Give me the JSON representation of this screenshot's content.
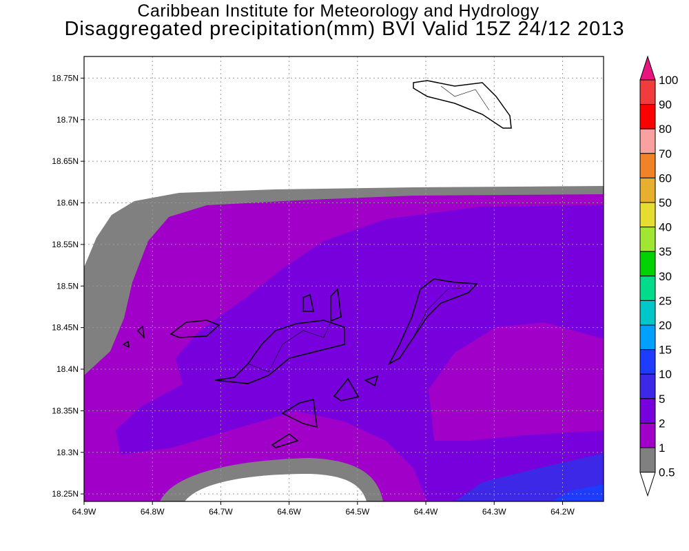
{
  "title": {
    "line1": "Caribbean Institute for Meteorology and Hydrology",
    "line2": "Disaggregated precipitation(mm) BVI Valid 15Z 24/12 2013"
  },
  "map": {
    "lon_range": [
      -64.9,
      -64.14
    ],
    "lat_range": [
      18.241,
      18.776
    ],
    "x_ticks": [
      {
        "value": -64.9,
        "label": "64.9W"
      },
      {
        "value": -64.8,
        "label": "64.8W"
      },
      {
        "value": -64.7,
        "label": "64.7W"
      },
      {
        "value": -64.6,
        "label": "64.6W"
      },
      {
        "value": -64.5,
        "label": "64.5W"
      },
      {
        "value": -64.4,
        "label": "64.4W"
      },
      {
        "value": -64.3,
        "label": "64.3W"
      },
      {
        "value": -64.2,
        "label": "64.2W"
      }
    ],
    "y_ticks": [
      {
        "value": 18.75,
        "label": "18.75N"
      },
      {
        "value": 18.7,
        "label": "18.7N"
      },
      {
        "value": 18.65,
        "label": "18.65N"
      },
      {
        "value": 18.6,
        "label": "18.6N"
      },
      {
        "value": 18.55,
        "label": "18.55N"
      },
      {
        "value": 18.5,
        "label": "18.5N"
      },
      {
        "value": 18.45,
        "label": "18.45N"
      },
      {
        "value": 18.4,
        "label": "18.4N"
      },
      {
        "value": 18.35,
        "label": "18.35N"
      },
      {
        "value": 18.3,
        "label": "18.3N"
      },
      {
        "value": 18.25,
        "label": "18.25N"
      }
    ]
  },
  "colorbar": {
    "over_color": "#e8147f",
    "under_color": "#ffffff",
    "levels": [
      "100",
      "90",
      "80",
      "70",
      "60",
      "50",
      "40",
      "35",
      "30",
      "25",
      "20",
      "15",
      "10",
      "5",
      "2",
      "1",
      "0.5"
    ],
    "colors": [
      "#f03c3c",
      "#ff0000",
      "#f9a0a0",
      "#f08228",
      "#e6af2d",
      "#e6dc32",
      "#a0e632",
      "#00d200",
      "#00dc8c",
      "#00c8c8",
      "#00a0ff",
      "#1e3cff",
      "#3c28e6",
      "#7800dc",
      "#a000c8",
      "#808080"
    ]
  }
}
